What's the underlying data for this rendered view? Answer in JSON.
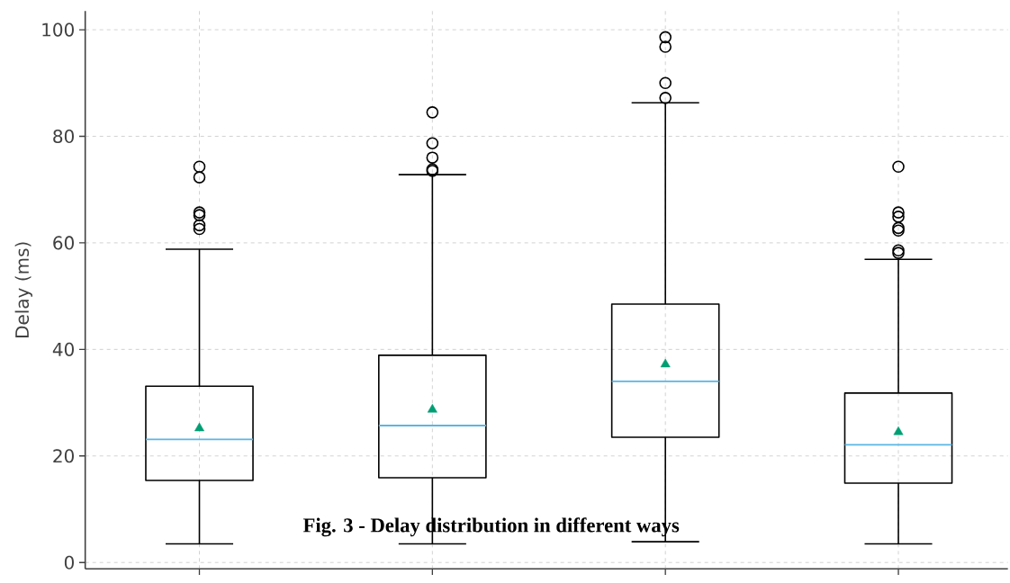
{
  "chart_data": {
    "type": "box",
    "ylabel": "Delay (ms)",
    "categories": [
      null,
      null,
      null,
      null
    ],
    "boxes": [
      {
        "low": 3.5,
        "q1": 15.4,
        "median": 23.1,
        "q3": 33.1,
        "high": 58.8,
        "mean": 25.2,
        "outliers": [
          74.3,
          72.3,
          65.7,
          65.2,
          63.3,
          62.6
        ]
      },
      {
        "low": 3.5,
        "q1": 15.9,
        "median": 25.7,
        "q3": 38.9,
        "high": 72.8,
        "mean": 28.7,
        "outliers": [
          84.5,
          78.7,
          76.0,
          73.8,
          73.5
        ]
      },
      {
        "low": 3.9,
        "q1": 23.5,
        "median": 34.0,
        "q3": 48.5,
        "high": 86.3,
        "mean": 37.2,
        "outliers": [
          98.6,
          96.8,
          90.0,
          87.2
        ]
      },
      {
        "low": 3.5,
        "q1": 14.9,
        "median": 22.1,
        "q3": 31.8,
        "high": 56.9,
        "mean": 24.5,
        "outliers": [
          74.3,
          65.7,
          64.9,
          62.8,
          62.3,
          58.6,
          58.1
        ]
      }
    ],
    "color": "#000000",
    "ylim": [
      -1.2,
      103.5
    ],
    "yticks": [
      0,
      20,
      40,
      60,
      80,
      100
    ],
    "grid": true,
    "tick_labels": "y",
    "annotations": [
      "Fig. 3 - Delay distribution in different ways"
    ]
  }
}
